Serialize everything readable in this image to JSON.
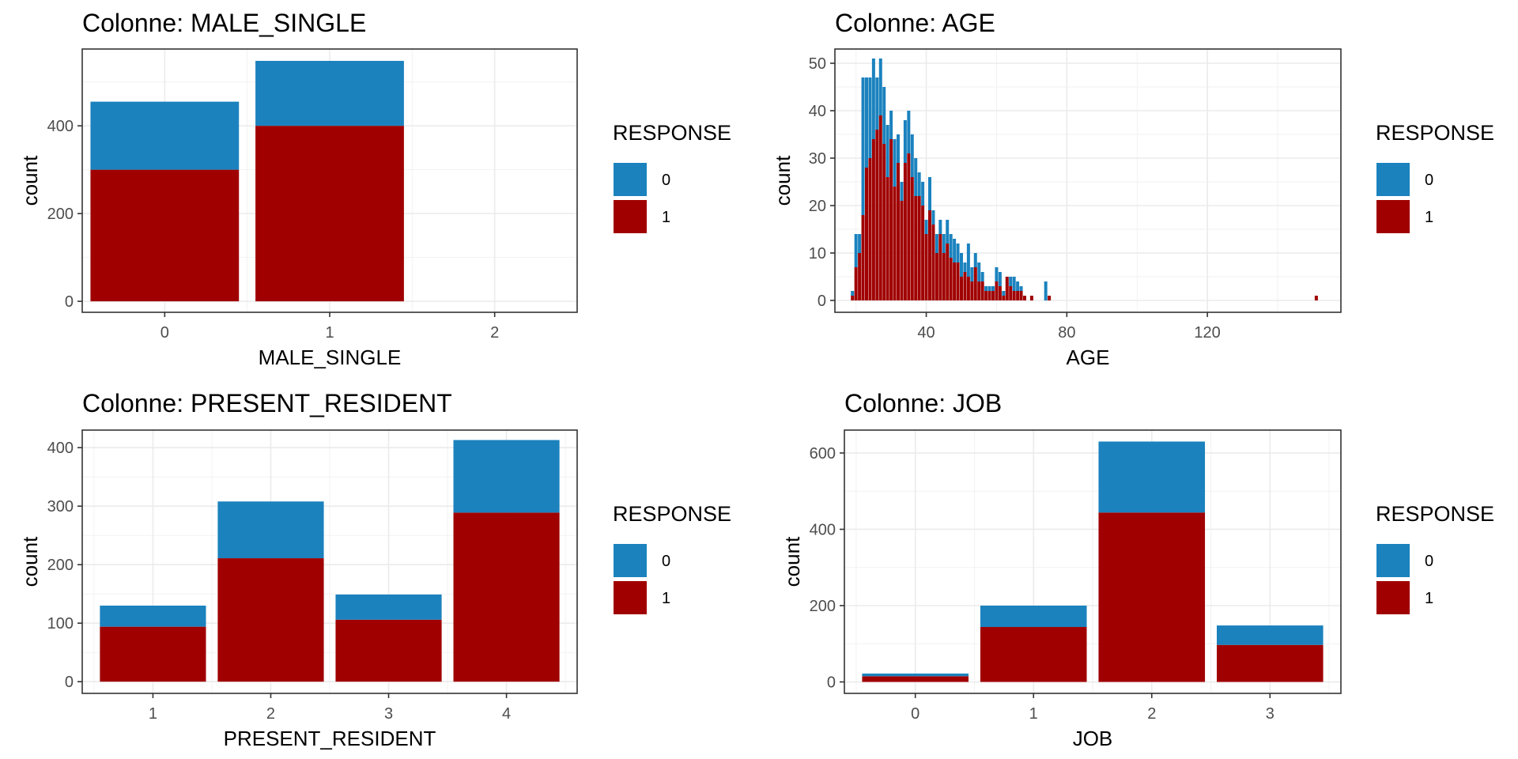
{
  "chart_data": [
    {
      "type": "bar",
      "stacked": true,
      "title": "Colonne:  MALE_SINGLE",
      "xlabel": "MALE_SINGLE",
      "ylabel": "count",
      "x_ticks": [
        0,
        1,
        2
      ],
      "y_ticks": [
        0,
        200,
        400
      ],
      "xlim": [
        -0.5,
        2.5
      ],
      "ylim": [
        -25,
        575
      ],
      "grid": true,
      "legend": {
        "title": "RESPONSE",
        "position": "right",
        "entries": [
          "0",
          "1"
        ]
      },
      "colors": {
        "0": "#1b82be",
        "1": "#a00000"
      },
      "x": [
        0,
        1
      ],
      "bar_width": 0.9,
      "series": [
        {
          "name": "1",
          "values": [
            300,
            400
          ]
        },
        {
          "name": "0",
          "values": [
            155,
            148
          ]
        }
      ]
    },
    {
      "type": "bar",
      "stacked": true,
      "title": "Colonne:  AGE",
      "xlabel": "AGE",
      "ylabel": "count",
      "x_ticks": [
        40,
        80,
        120
      ],
      "y_ticks": [
        0,
        10,
        20,
        30,
        40,
        50
      ],
      "xlim": [
        14,
        158
      ],
      "ylim": [
        -2.5,
        53
      ],
      "grid": true,
      "legend": {
        "title": "RESPONSE",
        "position": "right",
        "entries": [
          "0",
          "1"
        ]
      },
      "colors": {
        "0": "#1b82be",
        "1": "#a00000"
      },
      "x": [
        19,
        20,
        21,
        22,
        23,
        24,
        25,
        26,
        27,
        28,
        29,
        30,
        31,
        32,
        33,
        34,
        35,
        36,
        37,
        38,
        39,
        40,
        41,
        42,
        43,
        44,
        45,
        46,
        47,
        48,
        49,
        50,
        51,
        52,
        53,
        54,
        55,
        56,
        57,
        58,
        59,
        60,
        61,
        62,
        63,
        64,
        65,
        66,
        67,
        68,
        70,
        74,
        75,
        151
      ],
      "bar_width": 0.9,
      "series": [
        {
          "name": "1",
          "values": [
            1,
            7,
            10,
            18,
            28,
            30,
            34,
            36,
            39,
            33,
            26,
            34,
            24,
            29,
            21,
            29,
            31,
            26,
            22,
            22,
            20,
            14,
            19,
            16,
            10,
            14,
            10,
            12,
            9,
            8,
            8,
            5,
            6,
            5,
            4,
            7,
            4,
            4,
            2,
            2,
            2,
            4,
            3,
            1,
            5,
            3,
            2,
            2,
            2,
            1,
            1,
            0,
            1,
            1
          ]
        },
        {
          "name": "0",
          "values": [
            1,
            7,
            4,
            29,
            19,
            17,
            17,
            11,
            12,
            12,
            11,
            6,
            10,
            6,
            4,
            9,
            9,
            9,
            8,
            5,
            5,
            3,
            7,
            3,
            4,
            3,
            4,
            5,
            5,
            5,
            4,
            5,
            2,
            7,
            3,
            3,
            4,
            2,
            1,
            1,
            1,
            3,
            3,
            1,
            0,
            2,
            3,
            2,
            1,
            0,
            0,
            4,
            0,
            0
          ]
        }
      ]
    },
    {
      "type": "bar",
      "stacked": true,
      "title": "Colonne:  PRESENT_RESIDENT",
      "xlabel": "PRESENT_RESIDENT",
      "ylabel": "count",
      "x_ticks": [
        1,
        2,
        3,
        4
      ],
      "y_ticks": [
        0,
        100,
        200,
        300,
        400
      ],
      "xlim": [
        0.4,
        4.6
      ],
      "ylim": [
        -20,
        430
      ],
      "grid": true,
      "legend": {
        "title": "RESPONSE",
        "position": "right",
        "entries": [
          "0",
          "1"
        ]
      },
      "colors": {
        "0": "#1b82be",
        "1": "#a00000"
      },
      "x": [
        1,
        2,
        3,
        4
      ],
      "bar_width": 0.9,
      "series": [
        {
          "name": "1",
          "values": [
            94,
            211,
            106,
            289
          ]
        },
        {
          "name": "0",
          "values": [
            36,
            97,
            43,
            124
          ]
        }
      ]
    },
    {
      "type": "bar",
      "stacked": true,
      "title": "Colonne:  JOB",
      "xlabel": "JOB",
      "ylabel": "count",
      "x_ticks": [
        0,
        1,
        2,
        3
      ],
      "y_ticks": [
        0,
        200,
        400,
        600
      ],
      "xlim": [
        -0.6,
        3.6
      ],
      "ylim": [
        -30,
        660
      ],
      "grid": true,
      "legend": {
        "title": "RESPONSE",
        "position": "right",
        "entries": [
          "0",
          "1"
        ]
      },
      "colors": {
        "0": "#1b82be",
        "1": "#a00000"
      },
      "x": [
        0,
        1,
        2,
        3
      ],
      "bar_width": 0.9,
      "series": [
        {
          "name": "1",
          "values": [
            15,
            144,
            444,
            97
          ]
        },
        {
          "name": "0",
          "values": [
            7,
            56,
            186,
            51
          ]
        }
      ]
    }
  ]
}
